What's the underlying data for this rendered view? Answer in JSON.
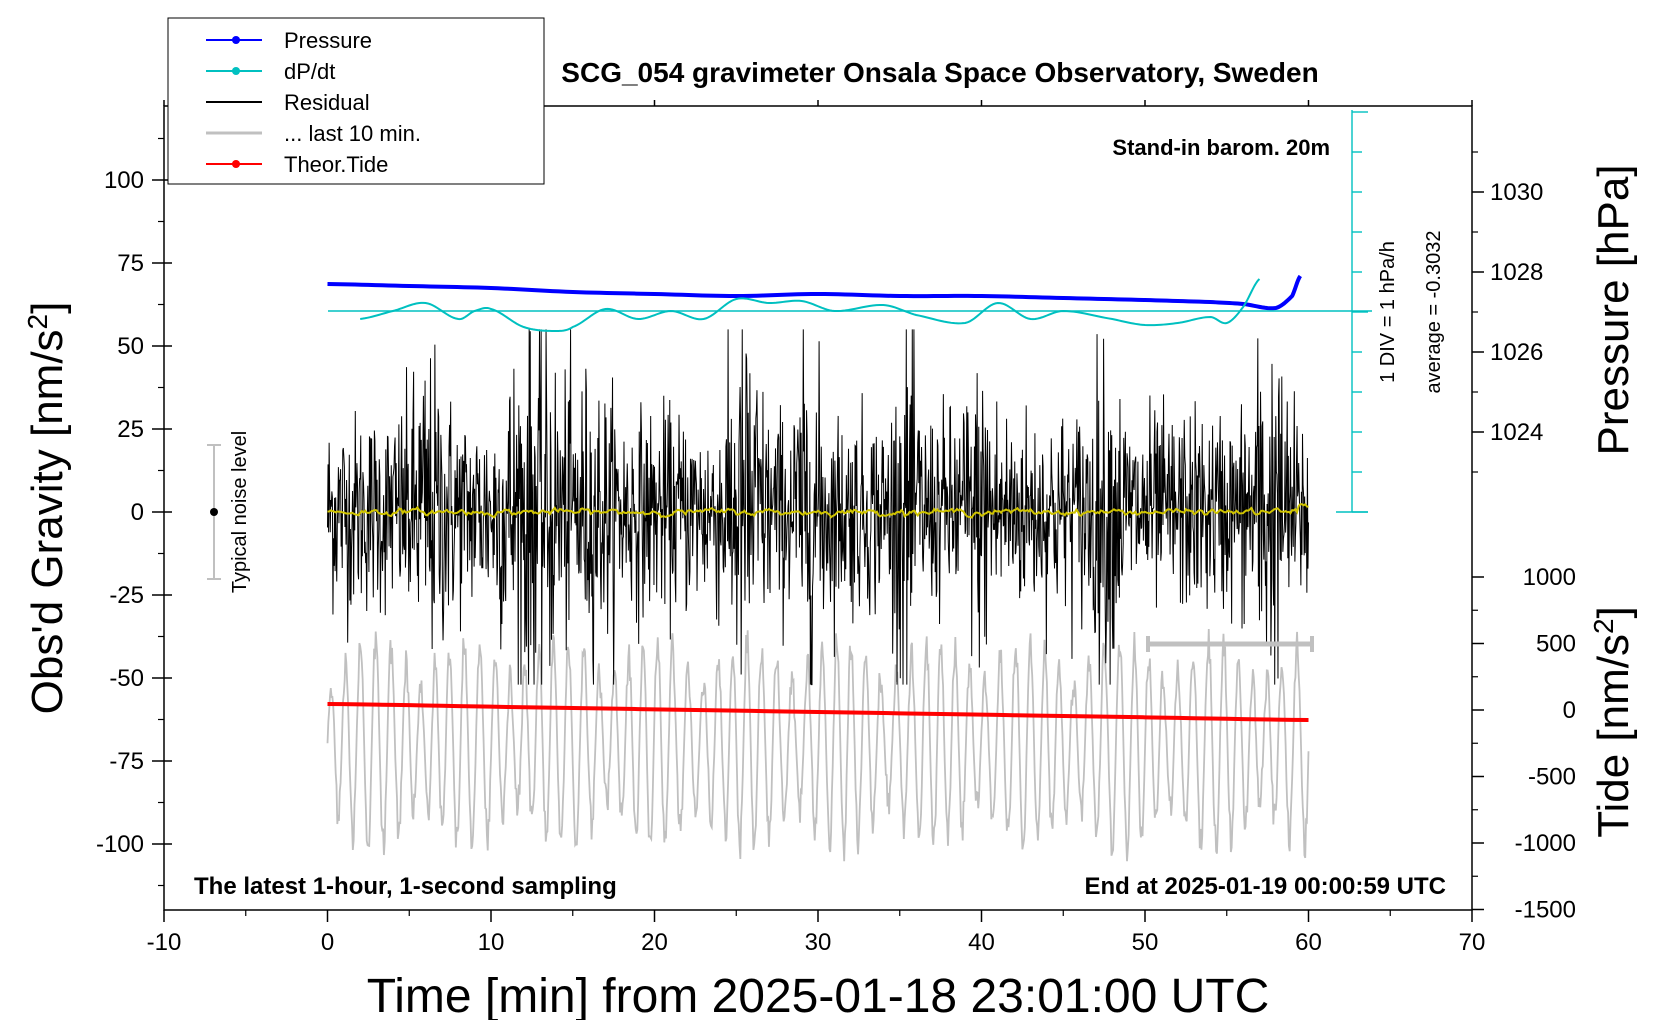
{
  "chart_data": {
    "type": "line",
    "title": "SCG_054 gravimeter Onsala Space Observatory, Sweden",
    "annotation_top_right": "Stand-in barom. 20m",
    "annotation_bottom_left": "The latest 1-hour, 1-second sampling",
    "annotation_bottom_right": "End at 2025-01-19 00:00:59 UTC",
    "noise_label": "Typical noise level",
    "dpdt_scale_label": "1 DIV = 1 hPa/h",
    "dpdt_average_label": "average = -0.3032",
    "xlabel": "Time [min] from 2025-01-18 23:01:00 UTC",
    "xlim": [
      -10,
      70
    ],
    "xticks": [
      "-10",
      "0",
      "10",
      "20",
      "30",
      "40",
      "50",
      "60",
      "70"
    ],
    "ylabel_left": "Obs'd Gravity [nm/s",
    "ylabel_left_sup": "2",
    "ylabel_left_end": "]",
    "ylim_left": [
      -120,
      120
    ],
    "yticks_left": [
      "100",
      "75",
      "50",
      "25",
      "0",
      "-25",
      "-50",
      "-75",
      "-100"
    ],
    "ylabel_pressure": "Pressure [hPa]",
    "yticks_pressure": [
      "1030",
      "1028",
      "1026",
      "1024"
    ],
    "ylabel_tide": "Tide [nm/s",
    "ylabel_tide_sup": "2",
    "ylabel_tide_end": "]",
    "yticks_tide": [
      "1000",
      "500",
      "0",
      "-500",
      "-1000",
      "-1500"
    ],
    "legend": [
      {
        "label": "Pressure",
        "color": "#0000ff",
        "marker": true
      },
      {
        "label": "dP/dt",
        "color": "#00c0c0",
        "marker": true
      },
      {
        "label": "Residual",
        "color": "#000000",
        "marker": false
      },
      {
        "label": "... last 10 min.",
        "color": "#c0c0c0",
        "marker": false
      },
      {
        "label": "Theor.Tide",
        "color": "#ff0000",
        "marker": true
      }
    ],
    "series": [
      {
        "name": "Pressure",
        "units": "hPa",
        "x": [
          0,
          5,
          10,
          15,
          20,
          25,
          30,
          35,
          40,
          45,
          50,
          54,
          56,
          58,
          59,
          59.5
        ],
        "values": [
          1027.7,
          1027.65,
          1027.6,
          1027.5,
          1027.45,
          1027.4,
          1027.45,
          1027.4,
          1027.4,
          1027.35,
          1027.3,
          1027.25,
          1027.2,
          1027.1,
          1027.4,
          1027.9
        ]
      },
      {
        "name": "dP/dt",
        "units": "hPa/h",
        "x": [
          2,
          4,
          6,
          8,
          9,
          10,
          12,
          14,
          15,
          17,
          19,
          21,
          23,
          25,
          27,
          29,
          31,
          34,
          36,
          39,
          41,
          43,
          45,
          48,
          50,
          52,
          54,
          55,
          56,
          57
        ],
        "values": [
          -0.2,
          0,
          0.2,
          -0.2,
          0,
          0.05,
          -0.4,
          -0.5,
          -0.4,
          0.05,
          -0.2,
          0,
          -0.2,
          0.3,
          0.2,
          0.25,
          0,
          0.15,
          -0.1,
          -0.3,
          0.2,
          -0.2,
          0.0,
          -0.2,
          -0.35,
          -0.3,
          -0.15,
          -0.3,
          0.1,
          0.8
        ]
      },
      {
        "name": "Theor.Tide",
        "units": "nm/s2",
        "x": [
          0,
          10,
          20,
          30,
          40,
          50,
          60
        ],
        "values": [
          45,
          25,
          5,
          -15,
          -35,
          -55,
          -75
        ]
      }
    ],
    "residual_std_nm_s2": 15,
    "noise_bar_range": [
      -20,
      20
    ],
    "last10_bar_x": [
      50,
      60
    ]
  }
}
